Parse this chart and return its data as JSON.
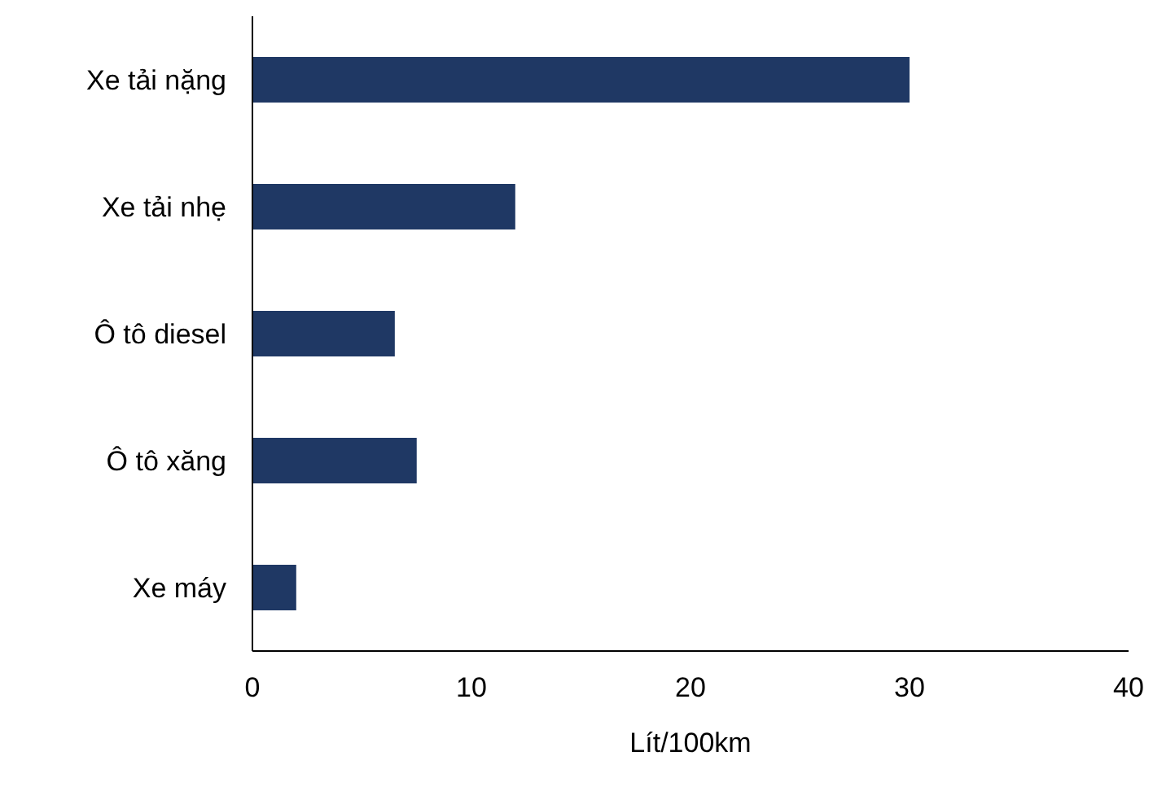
{
  "chart_data": {
    "type": "bar",
    "orientation": "horizontal",
    "categories": [
      "Xe tải nặng",
      "Xe tải nhẹ",
      "Ô tô diesel",
      "Ô tô xăng",
      "Xe máy"
    ],
    "values": [
      30,
      12,
      6.5,
      7.5,
      2
    ],
    "color": "#1f3864",
    "xlim": [
      0,
      40
    ],
    "xticks": [
      0,
      10,
      20,
      30,
      40
    ],
    "xlabel": "Lít/100km",
    "grid": false,
    "legend": false
  }
}
